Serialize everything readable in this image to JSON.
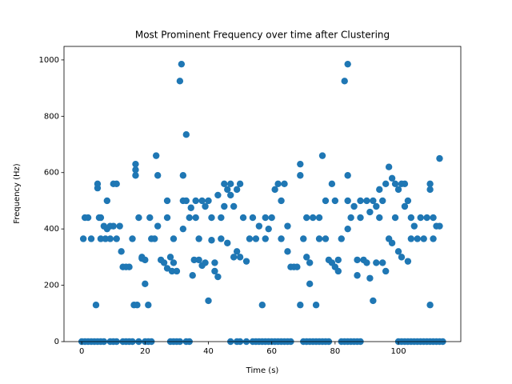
{
  "chart_data": {
    "type": "scatter",
    "title": "Most Prominent Frequency over time after Clustering",
    "xlabel": "Time (s)",
    "ylabel": "Frequency (Hz)",
    "color": "#1f77b4",
    "xlim": [
      -5.6,
      119.7
    ],
    "ylim": [
      0,
      1048
    ],
    "xticks": [
      0,
      20,
      40,
      60,
      80,
      100
    ],
    "yticks": [
      0,
      200,
      400,
      600,
      800,
      1000
    ],
    "x": [
      0.5,
      1,
      2,
      3,
      4.5,
      5,
      5,
      5.5,
      6,
      6,
      7,
      7.5,
      8,
      8,
      9,
      9,
      10,
      10,
      11,
      11,
      12,
      12.5,
      13,
      14,
      15,
      16,
      16.5,
      17,
      17,
      17,
      17.5,
      18,
      19,
      19,
      20,
      20,
      21,
      21.5,
      22,
      23,
      23.5,
      24,
      24,
      25,
      26,
      27,
      27,
      27,
      28,
      28.5,
      29,
      29,
      30,
      31,
      31.5,
      32,
      32,
      32,
      33,
      33,
      34,
      34.5,
      35,
      35.5,
      36,
      36,
      37,
      37,
      38,
      38,
      39,
      39,
      40,
      40,
      41,
      41,
      42,
      42,
      43,
      43,
      44,
      44,
      45,
      45,
      46,
      46,
      47,
      47,
      48,
      48,
      49,
      49,
      50,
      50,
      51,
      52,
      53,
      54,
      55,
      56,
      57,
      58,
      58,
      59,
      60,
      61,
      62,
      63,
      63,
      64,
      65,
      65,
      66,
      67,
      68,
      69,
      69,
      69,
      70,
      71,
      71,
      72,
      72,
      73,
      74,
      75,
      75,
      76,
      77,
      77,
      78,
      79,
      79,
      80,
      80,
      81,
      81,
      82,
      83,
      84,
      84,
      84,
      84,
      85,
      86,
      87,
      87,
      88,
      88,
      89,
      90,
      90,
      91,
      91,
      92,
      92,
      93,
      93,
      94,
      94,
      95,
      95,
      96,
      96,
      97,
      97,
      98,
      98,
      99,
      99,
      100,
      100,
      101,
      101,
      102,
      102,
      103,
      103,
      104,
      104,
      105,
      106,
      107,
      108,
      109,
      110,
      110,
      110,
      111,
      111,
      112,
      113,
      113,
      0,
      1,
      2,
      3,
      4,
      5,
      6,
      7,
      9,
      10,
      11,
      13,
      14,
      15,
      16,
      18,
      20,
      21,
      22,
      28,
      29,
      30,
      31,
      33,
      34,
      47,
      49,
      50,
      52,
      54,
      55,
      56,
      57,
      58,
      59,
      60,
      61,
      62,
      63,
      64,
      65,
      66,
      70,
      71,
      72,
      73,
      74,
      75,
      76,
      77,
      78,
      82,
      83,
      84,
      85,
      86,
      87,
      88,
      100,
      101,
      102,
      103,
      104,
      105,
      106,
      107,
      108,
      109,
      110,
      111,
      112,
      113,
      114
    ],
    "values": [
      365,
      440,
      440,
      365,
      130,
      545,
      560,
      440,
      440,
      365,
      410,
      365,
      500,
      400,
      410,
      365,
      560,
      410,
      560,
      365,
      410,
      320,
      265,
      265,
      265,
      365,
      130,
      630,
      590,
      610,
      130,
      440,
      300,
      295,
      205,
      290,
      130,
      440,
      365,
      365,
      660,
      590,
      410,
      290,
      280,
      500,
      440,
      260,
      300,
      250,
      365,
      280,
      250,
      925,
      985,
      590,
      500,
      400,
      735,
      500,
      440,
      475,
      235,
      290,
      500,
      440,
      365,
      290,
      500,
      270,
      480,
      280,
      500,
      145,
      440,
      360,
      280,
      250,
      230,
      520,
      365,
      440,
      560,
      480,
      350,
      540,
      520,
      560,
      300,
      480,
      320,
      540,
      560,
      300,
      440,
      285,
      365,
      440,
      365,
      410,
      130,
      440,
      365,
      400,
      440,
      540,
      560,
      365,
      500,
      560,
      320,
      410,
      265,
      265,
      265,
      130,
      630,
      590,
      365,
      440,
      300,
      205,
      280,
      440,
      130,
      365,
      440,
      660,
      500,
      365,
      290,
      280,
      560,
      500,
      265,
      250,
      290,
      365,
      925,
      985,
      590,
      500,
      400,
      440,
      480,
      290,
      235,
      500,
      440,
      290,
      500,
      280,
      460,
      225,
      500,
      145,
      480,
      280,
      540,
      440,
      280,
      500,
      560,
      250,
      620,
      365,
      580,
      350,
      560,
      440,
      540,
      320,
      560,
      300,
      560,
      480,
      500,
      285,
      440,
      365,
      410,
      365,
      440,
      365,
      440,
      560,
      540,
      130,
      440,
      365,
      410,
      650,
      410,
      0,
      0,
      0,
      0,
      0,
      0,
      0,
      0,
      0,
      0,
      0,
      0,
      0,
      0,
      0,
      0,
      0,
      0,
      0,
      0,
      0,
      0,
      0,
      0,
      0,
      0,
      0,
      0,
      0,
      0,
      0,
      0,
      0,
      0,
      0,
      0,
      0,
      0,
      0,
      0,
      0,
      0,
      0,
      0,
      0,
      0,
      0,
      0,
      0,
      0,
      0,
      0,
      0,
      0,
      0,
      0,
      0,
      0,
      0,
      0,
      0,
      0,
      0,
      0,
      0,
      0,
      0,
      0,
      0,
      0,
      0,
      0,
      0
    ]
  }
}
